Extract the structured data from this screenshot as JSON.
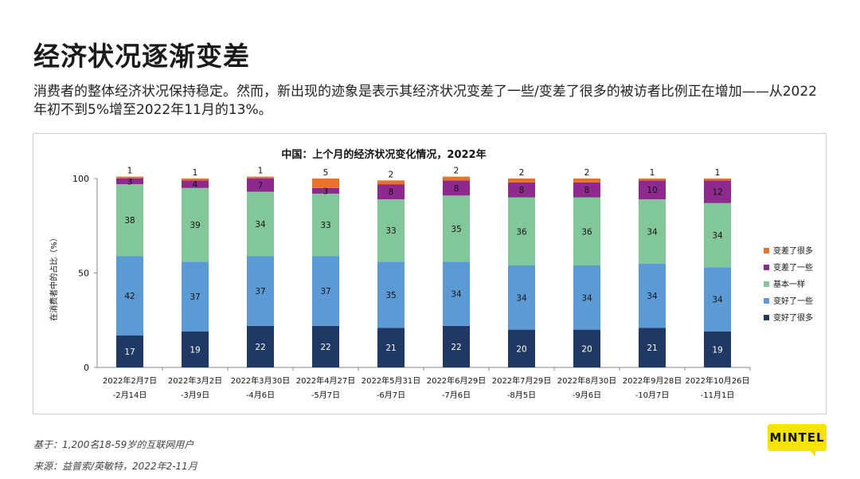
{
  "page": {
    "title": "经济状况逐渐变差",
    "subtitle": "消费者的整体经济状况保持稳定。然而，新出现的迹象是表示其经济状况变差了一些/变差了很多的被访者比例正在增加——从2022年初不到5%增至2022年11月的13%。",
    "note_base": "基于：1,200名18-59岁的互联网用户",
    "note_source": "来源：益普索/英敏特，2022年2-11月",
    "logo_text": "MINTEL"
  },
  "colors": {
    "worse_much": "#e8722a",
    "worse_some": "#8e2a8e",
    "same": "#82c79a",
    "better_some": "#5b9bd5",
    "better_much": "#1f3864"
  },
  "chart_data": {
    "type": "bar",
    "stacked": true,
    "title": "中国：上个月的经济状况变化情况，2022年",
    "ylabel": "在消费者中的占比（%）",
    "ylim": [
      0,
      100
    ],
    "yticks": [
      0,
      50,
      100
    ],
    "legend_position": "right",
    "categories": [
      [
        "2022年2月7日",
        "-2月14日"
      ],
      [
        "2022年3月2日",
        "-3月9日"
      ],
      [
        "2022年3月30日",
        "-4月6日"
      ],
      [
        "2022年4月27日",
        "-5月7日"
      ],
      [
        "2022年5月31日",
        "-6月7日"
      ],
      [
        "2022年6月29日",
        "-7月6日"
      ],
      [
        "2022年7月29日",
        "-8月5日"
      ],
      [
        "2022年8月30日",
        "-9月6日"
      ],
      [
        "2022年9月28日",
        "-10月7日"
      ],
      [
        "2022年10月26日",
        "-11月1日"
      ]
    ],
    "series": [
      {
        "name": "变好了很多",
        "key": "better_much",
        "values": [
          17,
          19,
          22,
          22,
          21,
          22,
          20,
          20,
          21,
          19
        ]
      },
      {
        "name": "变好了一些",
        "key": "better_some",
        "values": [
          42,
          37,
          37,
          37,
          35,
          34,
          34,
          34,
          34,
          34
        ]
      },
      {
        "name": "基本一样",
        "key": "same",
        "values": [
          38,
          39,
          34,
          33,
          33,
          35,
          36,
          36,
          34,
          34
        ]
      },
      {
        "name": "变差了一些",
        "key": "worse_some",
        "values": [
          3,
          4,
          7,
          3,
          8,
          8,
          8,
          8,
          10,
          12
        ]
      },
      {
        "name": "变差了很多",
        "key": "worse_much",
        "values": [
          1,
          1,
          1,
          5,
          2,
          2,
          2,
          2,
          1,
          1
        ]
      }
    ]
  }
}
